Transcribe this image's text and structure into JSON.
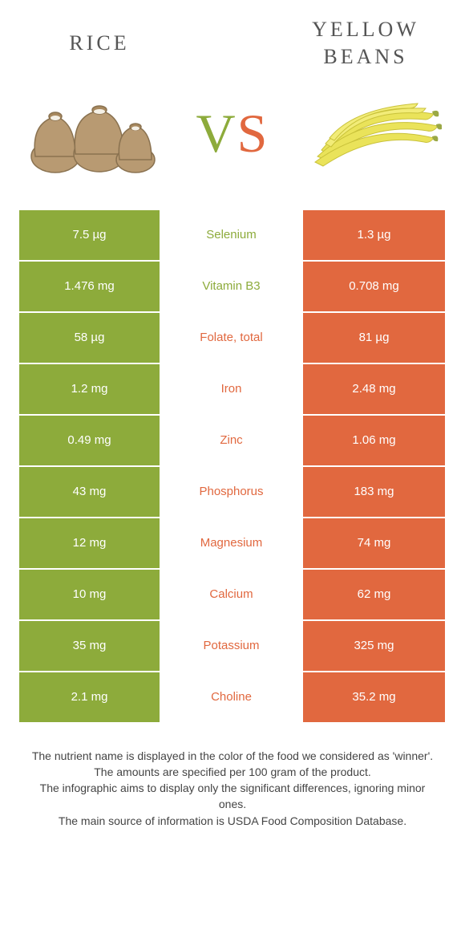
{
  "header": {
    "left_title": "RICE",
    "right_title": "YELLOW BEANS",
    "vs_left": "V",
    "vs_right": "S"
  },
  "colors": {
    "green": "#8dab3b",
    "orange": "#e1683f",
    "background": "#ffffff",
    "text_dark": "#555555",
    "footnote": "#444444"
  },
  "table": {
    "rows": [
      {
        "left": "7.5 µg",
        "nutrient": "Selenium",
        "winner": "green",
        "right": "1.3 µg"
      },
      {
        "left": "1.476 mg",
        "nutrient": "Vitamin B3",
        "winner": "green",
        "right": "0.708 mg"
      },
      {
        "left": "58 µg",
        "nutrient": "Folate, total",
        "winner": "orange",
        "right": "81 µg"
      },
      {
        "left": "1.2 mg",
        "nutrient": "Iron",
        "winner": "orange",
        "right": "2.48 mg"
      },
      {
        "left": "0.49 mg",
        "nutrient": "Zinc",
        "winner": "orange",
        "right": "1.06 mg"
      },
      {
        "left": "43 mg",
        "nutrient": "Phosphorus",
        "winner": "orange",
        "right": "183 mg"
      },
      {
        "left": "12 mg",
        "nutrient": "Magnesium",
        "winner": "orange",
        "right": "74 mg"
      },
      {
        "left": "10 mg",
        "nutrient": "Calcium",
        "winner": "orange",
        "right": "62 mg"
      },
      {
        "left": "35 mg",
        "nutrient": "Potassium",
        "winner": "orange",
        "right": "325 mg"
      },
      {
        "left": "2.1 mg",
        "nutrient": "Choline",
        "winner": "orange",
        "right": "35.2 mg"
      }
    ]
  },
  "footnotes": [
    "The nutrient name is displayed in the color of the food we considered as 'winner'.",
    "The amounts are specified per 100 gram of the product.",
    "The infographic aims to display only the significant differences, ignoring minor ones.",
    "The main source of information is USDA Food Composition Database."
  ],
  "icons": {
    "left_food": "rice-sacks",
    "right_food": "yellow-beans"
  }
}
